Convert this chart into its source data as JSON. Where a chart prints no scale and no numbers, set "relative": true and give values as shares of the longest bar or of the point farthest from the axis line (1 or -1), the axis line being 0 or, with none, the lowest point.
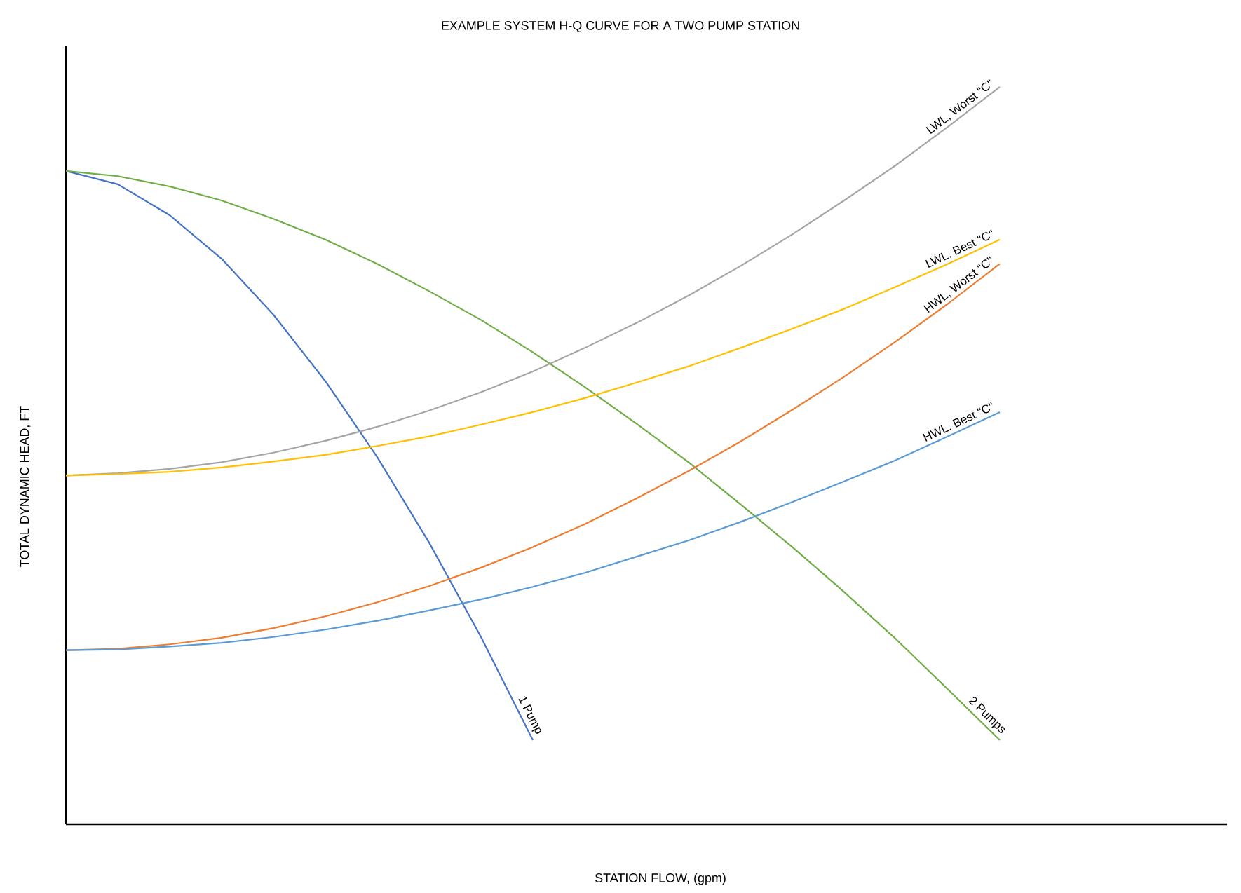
{
  "chart_data": {
    "type": "line",
    "relative": true,
    "title": "EXAMPLE SYSTEM H-Q CURVE FOR A TWO PUMP STATION",
    "xlabel": "STATION FLOW, (gpm)",
    "ylabel": "TOTAL DYNAMIC HEAD, FT",
    "categories": [
      null,
      null,
      null,
      null,
      null,
      null,
      null,
      null,
      null,
      null,
      null,
      null,
      null,
      null,
      null,
      null,
      null,
      null,
      null
    ],
    "legend": false,
    "marker": "none",
    "series": [
      {
        "name": "1 Pump",
        "color": "#4472c4",
        "values": [
          0.886,
          0.868,
          0.826,
          0.767,
          0.691,
          0.601,
          0.498,
          0.382,
          0.254,
          0.114,
          null,
          null,
          null,
          null,
          null,
          null,
          null,
          null,
          null
        ]
      },
      {
        "name": "2 Pumps",
        "color": "#70ad47",
        "values": [
          0.886,
          0.879,
          0.865,
          0.846,
          0.821,
          0.793,
          0.76,
          0.723,
          0.684,
          0.64,
          0.593,
          0.543,
          0.491,
          0.434,
          0.376,
          0.315,
          0.251,
          0.183,
          0.114
        ]
      },
      {
        "name": "LWL, Worst \"C\"",
        "color": "#a5a5a5",
        "values": [
          0.473,
          0.476,
          0.482,
          0.491,
          0.504,
          0.52,
          0.539,
          0.561,
          0.586,
          0.614,
          0.646,
          0.68,
          0.717,
          0.757,
          0.8,
          0.846,
          0.894,
          0.946,
          1.0
        ]
      },
      {
        "name": "LWL, Best \"C\"",
        "color": "#ffc000",
        "values": [
          0.473,
          0.475,
          0.478,
          0.484,
          0.492,
          0.501,
          0.513,
          0.526,
          0.542,
          0.559,
          0.578,
          0.599,
          0.621,
          0.646,
          0.672,
          0.699,
          0.729,
          0.76,
          0.793
        ]
      },
      {
        "name": "HWL, Worst \"C\"",
        "color": "#ed7d31",
        "values": [
          0.236,
          0.238,
          0.244,
          0.253,
          0.266,
          0.282,
          0.301,
          0.323,
          0.348,
          0.376,
          0.407,
          0.442,
          0.479,
          0.519,
          0.562,
          0.607,
          0.655,
          0.706,
          0.76
        ]
      },
      {
        "name": "HWL, Best \"C\"",
        "color": "#5b9bd5",
        "values": [
          0.236,
          0.237,
          0.241,
          0.246,
          0.254,
          0.264,
          0.276,
          0.29,
          0.305,
          0.322,
          0.341,
          0.363,
          0.385,
          0.41,
          0.437,
          0.465,
          0.494,
          0.526,
          0.559
        ]
      }
    ]
  }
}
